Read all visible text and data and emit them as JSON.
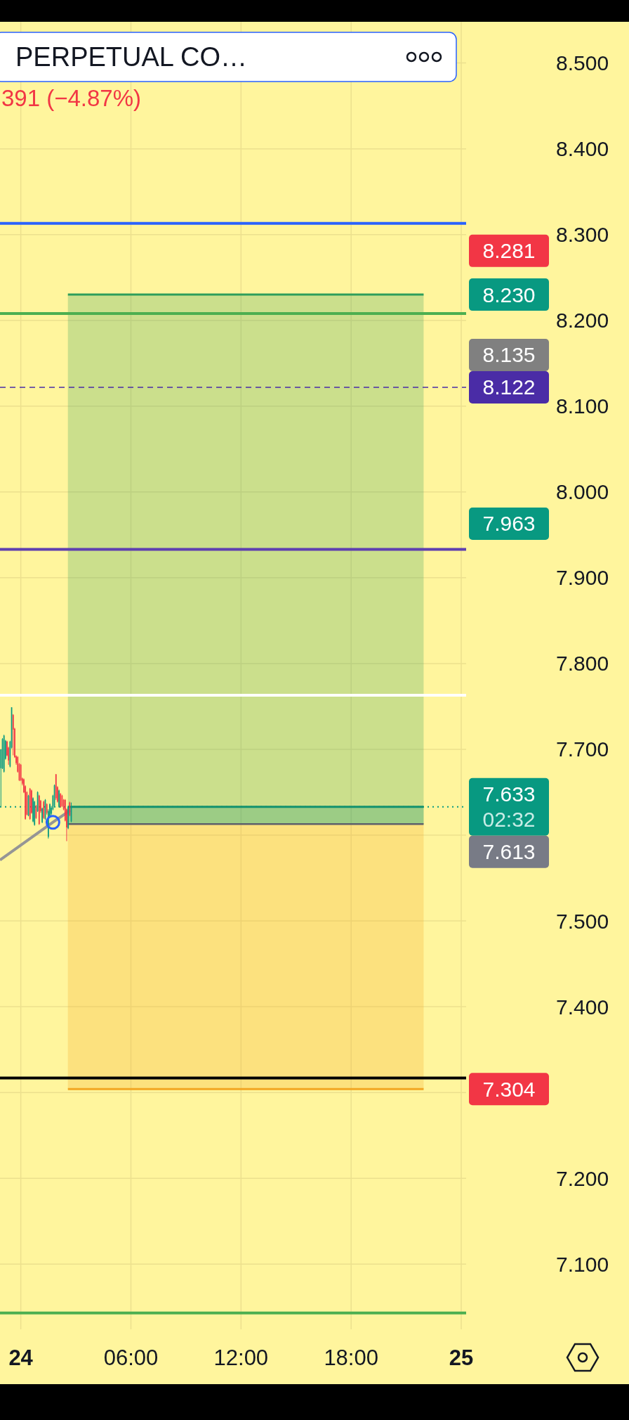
{
  "chart_data": {
    "type": "candlestick",
    "title": "PERPETUAL CO…",
    "subtitle": "391 (−4.87%)",
    "xlim": [
      "--01-23T22:52",
      "--01-25T00:16"
    ],
    "xticks": [
      {
        "value": "--01-24T00:00",
        "label": "24"
      },
      {
        "value": "--01-24T06:00",
        "label": "06:00"
      },
      {
        "value": "--01-24T12:00",
        "label": "12:00"
      },
      {
        "value": "--01-24T18:00",
        "label": "18:00"
      },
      {
        "value": "--01-25T00:00",
        "label": "25"
      }
    ],
    "ylim": [
      7.024,
      8.548
    ],
    "yticks": [
      {
        "value": 8.5,
        "label": "8.500"
      },
      {
        "value": 8.4,
        "label": "8.400"
      },
      {
        "value": 8.3,
        "label": "8.300"
      },
      {
        "value": 8.2,
        "label": "8.200"
      },
      {
        "value": 8.1,
        "label": "8.100"
      },
      {
        "value": 8.0,
        "label": "8.000"
      },
      {
        "value": 7.9,
        "label": "7.900"
      },
      {
        "value": 7.8,
        "label": "7.800"
      },
      {
        "value": 7.7,
        "label": "7.700"
      },
      {
        "value": 7.6,
        "label": null
      },
      {
        "value": 7.5,
        "label": "7.500"
      },
      {
        "value": 7.4,
        "label": "7.400"
      },
      {
        "value": 7.3,
        "label": null
      },
      {
        "value": 7.2,
        "label": "7.200"
      },
      {
        "value": 7.1,
        "label": "7.100"
      }
    ],
    "grid": true,
    "series": [
      {
        "type": "line",
        "x": [
          "--01-24T02:34",
          "--01-24T21:57"
        ],
        "values": [
          8.23,
          8.23
        ],
        "lower": [
          7.613,
          7.613
        ],
        "upper": [
          8.23,
          8.23
        ],
        "color": "#2e9e5b"
      },
      {
        "type": "line",
        "x": [
          "--01-24T02:34",
          "--01-24T21:57"
        ],
        "values": [
          7.633,
          7.633
        ],
        "lower": [
          7.613,
          7.613
        ],
        "upper": [
          7.633,
          7.633
        ],
        "color": "#11926e"
      },
      {
        "type": "line",
        "x": [
          "--01-24T02:34",
          "--01-24T21:57"
        ],
        "values": [
          7.304,
          7.304
        ],
        "lower": [
          7.304,
          7.304
        ],
        "upper": [
          7.613,
          7.613
        ],
        "color": "#f2a623"
      },
      {
        "type": "line",
        "x": [
          "--01-24T02:34",
          "--01-24T21:57"
        ],
        "values": [
          7.613,
          7.613
        ],
        "color": "#5d606b"
      },
      {
        "type": "line",
        "x": [
          "--01-23T22:52",
          "--01-24T01:45",
          "--01-24T02:42"
        ],
        "values": [
          7.571,
          7.615,
          7.629
        ],
        "color": "#959595"
      },
      {
        "x": [
          "--01-23T22:55",
          "--01-23T23:00",
          "--01-23T23:05",
          "--01-23T23:10",
          "--01-23T23:15",
          "--01-23T23:20",
          "--01-23T23:25",
          "--01-23T23:30",
          "--01-23T23:35",
          "--01-23T23:40",
          "--01-23T23:45",
          "--01-23T23:50",
          "--01-23T23:55",
          "--01-24T00:00",
          "--01-24T00:05",
          "--01-24T00:10",
          "--01-24T00:15",
          "--01-24T00:20",
          "--01-24T00:25",
          "--01-24T00:30",
          "--01-24T00:35",
          "--01-24T00:40",
          "--01-24T00:45",
          "--01-24T00:50",
          "--01-24T00:55",
          "--01-24T01:00",
          "--01-24T01:05",
          "--01-24T01:10",
          "--01-24T01:15",
          "--01-24T01:20",
          "--01-24T01:25",
          "--01-24T01:30",
          "--01-24T01:35",
          "--01-24T01:40",
          "--01-24T01:45",
          "--01-24T01:50",
          "--01-24T01:55",
          "--01-24T02:00",
          "--01-24T02:05",
          "--01-24T02:10",
          "--01-24T02:15",
          "--01-24T02:20",
          "--01-24T02:25",
          "--01-24T02:30",
          "--01-24T02:35",
          "--01-24T02:40",
          "--01-24T02:45"
        ],
        "ohlc": [
          [
            7.678,
            7.7,
            7.633,
            7.7
          ],
          [
            7.678,
            7.713,
            7.677,
            7.712
          ],
          [
            7.674,
            7.717,
            7.673,
            7.716
          ],
          [
            7.689,
            7.711,
            7.688,
            7.71
          ],
          [
            7.709,
            7.71,
            7.692,
            7.693
          ],
          [
            7.702,
            7.703,
            7.682,
            7.687
          ],
          [
            7.68,
            7.71,
            7.679,
            7.709
          ],
          [
            7.702,
            7.749,
            7.701,
            7.749
          ],
          [
            7.74,
            7.741,
            7.693,
            7.723
          ],
          [
            7.724,
            7.725,
            7.69,
            7.691
          ],
          [
            7.692,
            7.693,
            7.682,
            7.684
          ],
          [
            7.691,
            7.692,
            7.673,
            7.674
          ],
          [
            7.683,
            7.684,
            7.663,
            7.664
          ],
          [
            7.682,
            7.683,
            7.663,
            7.664
          ],
          [
            7.666,
            7.667,
            7.658,
            7.66
          ],
          [
            7.665,
            7.666,
            7.649,
            7.65
          ],
          [
            7.657,
            7.658,
            7.618,
            7.619
          ],
          [
            7.65,
            7.651,
            7.623,
            7.624
          ],
          [
            7.623,
            7.647,
            7.622,
            7.646
          ],
          [
            7.654,
            7.655,
            7.618,
            7.619
          ],
          [
            7.652,
            7.653,
            7.625,
            7.626
          ],
          [
            7.616,
            7.644,
            7.615,
            7.643
          ],
          [
            7.612,
            7.64,
            7.611,
            7.639
          ],
          [
            7.634,
            7.635,
            7.619,
            7.62
          ],
          [
            7.628,
            7.651,
            7.627,
            7.65
          ],
          [
            7.646,
            7.647,
            7.612,
            7.613
          ],
          [
            7.64,
            7.641,
            7.626,
            7.628
          ],
          [
            7.615,
            7.632,
            7.614,
            7.631
          ],
          [
            7.639,
            7.64,
            7.619,
            7.62
          ],
          [
            7.619,
            7.642,
            7.618,
            7.641
          ],
          [
            7.636,
            7.637,
            7.624,
            7.626
          ],
          [
            7.598,
            7.63,
            7.596,
            7.628
          ],
          [
            7.622,
            7.637,
            7.621,
            7.636
          ],
          [
            7.625,
            7.634,
            7.623,
            7.632
          ],
          [
            7.63,
            7.647,
            7.629,
            7.646
          ],
          [
            7.634,
            7.659,
            7.633,
            7.658
          ],
          [
            7.671,
            7.671,
            7.641,
            7.643
          ],
          [
            7.656,
            7.657,
            7.638,
            7.639
          ],
          [
            7.633,
            7.653,
            7.632,
            7.652
          ],
          [
            7.648,
            7.649,
            7.632,
            7.633
          ],
          [
            7.646,
            7.647,
            7.633,
            7.634
          ],
          [
            7.641,
            7.642,
            7.629,
            7.63
          ],
          [
            7.641,
            7.642,
            7.616,
            7.617
          ],
          [
            7.63,
            7.631,
            7.593,
            7.609
          ],
          [
            7.608,
            7.634,
            7.607,
            7.633
          ],
          [
            7.638,
            7.639,
            7.622,
            7.623
          ],
          [
            7.616,
            7.638,
            7.615,
            7.633
          ]
        ],
        "colors": [
          "#089981",
          "#089981",
          "#089981",
          "#089981",
          "#f23645",
          "#f23645",
          "#089981",
          "#089981",
          "#f23645",
          "#f23645",
          "#f23645",
          "#f23645",
          "#f23645",
          "#f23645",
          "#f23645",
          "#f23645",
          "#f23645",
          "#f23645",
          "#089981",
          "#f23645",
          "#f23645",
          "#089981",
          "#089981",
          "#f23645",
          "#089981",
          "#f23645",
          "#f23645",
          "#089981",
          "#f23645",
          "#089981",
          "#f23645",
          "#089981",
          "#089981",
          "#089981",
          "#089981",
          "#089981",
          "#f23645",
          "#f23645",
          "#089981",
          "#f23645",
          "#f23645",
          "#f23645",
          "#f23645",
          "#f23645",
          "#089981",
          "#f23645",
          "#089981"
        ]
      }
    ],
    "ref_lines": [
      {
        "axis": "y",
        "value": 8.313,
        "color": "#2962ff"
      },
      {
        "axis": "y",
        "value": 8.208,
        "color": "#4caf50"
      },
      {
        "axis": "y",
        "value": 8.122,
        "color": "#4a2ca6",
        "line_style": "dashed",
        "label": "8.122"
      },
      {
        "axis": "y",
        "value": 7.933,
        "color": "#5e3fb0"
      },
      {
        "axis": "y",
        "value": 7.763,
        "color": "#ffffff"
      },
      {
        "axis": "y",
        "value": 7.633,
        "color": "#089981",
        "line_style": "dotted",
        "label": "7.633\n02:32"
      },
      {
        "axis": "y",
        "value": 7.317,
        "color": "#000000"
      },
      {
        "axis": "y",
        "value": 7.043,
        "color": "#4caf50"
      }
    ],
    "annotations": [
      "8.281",
      "8.230",
      "8.135",
      "7.963",
      "7.613",
      "7.304"
    ]
  }
}
